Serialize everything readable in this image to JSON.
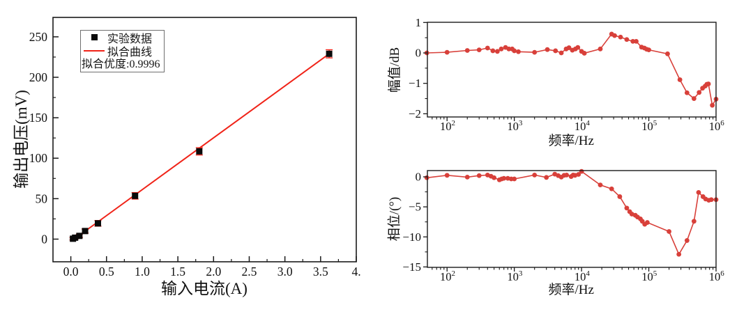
{
  "page": {
    "background": "#ffffff"
  },
  "chart_data": [
    {
      "id": "linearity-plot",
      "type": "scatter",
      "xlabel": "输入电流(A)",
      "ylabel": "输出电压(mV)",
      "xlim": [
        -0.25,
        4.0
      ],
      "ylim": [
        -28,
        274
      ],
      "x_ticks": {
        "values": [
          0,
          0.5,
          1,
          1.5,
          2,
          2.5,
          3,
          3.5,
          4
        ],
        "labels": [
          "0.0",
          "0.5",
          "1.0",
          "1.5",
          "2.0",
          "2.5",
          "3.0",
          "3.5",
          "4."
        ]
      },
      "x_minor_ticks": [
        0.25,
        0.75,
        1.25,
        1.75,
        2.25,
        2.75,
        3.25,
        3.75
      ],
      "y_ticks": {
        "values": [
          0,
          50,
          100,
          150,
          200,
          250
        ],
        "labels": [
          "0",
          "50",
          "100",
          "150",
          "200",
          "250"
        ]
      },
      "y_minor_ticks": [
        25,
        75,
        125,
        175,
        225
      ],
      "legend": {
        "data_label": "实验数据",
        "fit_label": "拟合曲线",
        "fit_quality": "拟合优度:0.9996"
      },
      "colors": {
        "marker": "#0a0a0a",
        "fit_line": "#f02318"
      },
      "points": [
        [
          0.03,
          0.5,
          1.5
        ],
        [
          0.06,
          1.8,
          1.5
        ],
        [
          0.12,
          4,
          2
        ],
        [
          0.2,
          10,
          2.5
        ],
        [
          0.38,
          19.5,
          3.5
        ],
        [
          0.9,
          53.5,
          4
        ],
        [
          1.8,
          108.5,
          4.5
        ],
        [
          3.62,
          229,
          5
        ]
      ],
      "fit_line": [
        [
          0.02,
          -1.7
        ],
        [
          3.62,
          229
        ]
      ]
    },
    {
      "id": "bode-magnitude",
      "type": "line",
      "xlabel": "频率/Hz",
      "ylabel": "幅值/dB",
      "x_scale": "log",
      "xlim": [
        51,
        1000000
      ],
      "ylim": [
        -2.105,
        1.007
      ],
      "x_tick_exponents": [
        2,
        3,
        4,
        5,
        6
      ],
      "y_ticks": {
        "values": [
          1,
          0,
          -1,
          -2
        ],
        "labels": [
          "1",
          "0",
          "−1",
          "−2"
        ]
      },
      "y_minor_ticks": [
        0.5,
        -0.5,
        -1.5
      ],
      "color": "#d8403a",
      "points": [
        [
          50,
          0.0
        ],
        [
          100,
          0.02
        ],
        [
          200,
          0.08
        ],
        [
          300,
          0.1
        ],
        [
          400,
          0.16
        ],
        [
          480,
          0.07
        ],
        [
          560,
          0.05
        ],
        [
          640,
          0.13
        ],
        [
          740,
          0.18
        ],
        [
          830,
          0.13
        ],
        [
          930,
          0.13
        ],
        [
          1000,
          0.07
        ],
        [
          1150,
          0.04
        ],
        [
          2000,
          0.02
        ],
        [
          3100,
          0.11
        ],
        [
          4100,
          0.07
        ],
        [
          5000,
          0.0
        ],
        [
          5900,
          0.13
        ],
        [
          6500,
          0.17
        ],
        [
          7300,
          0.09
        ],
        [
          8100,
          0.13
        ],
        [
          8800,
          0.18
        ],
        [
          10000,
          0.05
        ],
        [
          11000,
          -0.01
        ],
        [
          19000,
          0.13
        ],
        [
          28000,
          0.62
        ],
        [
          31000,
          0.57
        ],
        [
          38000,
          0.52
        ],
        [
          47000,
          0.44
        ],
        [
          58000,
          0.38
        ],
        [
          65000,
          0.38
        ],
        [
          78000,
          0.19
        ],
        [
          86000,
          0.16
        ],
        [
          93000,
          0.12
        ],
        [
          100000,
          0.1
        ],
        [
          190000,
          -0.03
        ],
        [
          290000,
          -0.88
        ],
        [
          370000,
          -1.31
        ],
        [
          470000,
          -1.5
        ],
        [
          560000,
          -1.3
        ],
        [
          630000,
          -1.16
        ],
        [
          690000,
          -1.09
        ],
        [
          730000,
          -1.03
        ],
        [
          770000,
          -1.02
        ],
        [
          880000,
          -1.72
        ],
        [
          1000000,
          -1.52
        ]
      ]
    },
    {
      "id": "bode-phase",
      "type": "line",
      "xlabel": "频率/Hz",
      "ylabel": "相位/(°)",
      "x_scale": "log",
      "xlim": [
        51,
        1000000
      ],
      "ylim": [
        -15.07,
        1.04
      ],
      "x_tick_exponents": [
        2,
        3,
        4,
        5,
        6
      ],
      "y_ticks": {
        "values": [
          0,
          -5,
          -10,
          -15
        ],
        "labels": [
          "0",
          "−5",
          "−10",
          "−15"
        ]
      },
      "y_minor_ticks": [
        -2.5,
        -7.5,
        -12.5
      ],
      "color": "#d8403a",
      "points": [
        [
          50,
          -0.15
        ],
        [
          100,
          0.25
        ],
        [
          200,
          -0.05
        ],
        [
          300,
          0.2
        ],
        [
          400,
          0.3
        ],
        [
          450,
          0.1
        ],
        [
          500,
          -0.15
        ],
        [
          600,
          -0.5
        ],
        [
          650,
          -0.35
        ],
        [
          700,
          -0.25
        ],
        [
          800,
          -0.25
        ],
        [
          900,
          -0.35
        ],
        [
          1000,
          -0.35
        ],
        [
          2000,
          0.3
        ],
        [
          3000,
          -0.1
        ],
        [
          4000,
          0.45
        ],
        [
          4500,
          0.2
        ],
        [
          5000,
          -0.05
        ],
        [
          5500,
          0.25
        ],
        [
          6000,
          0.3
        ],
        [
          7000,
          0.05
        ],
        [
          7500,
          0.3
        ],
        [
          8000,
          0.25
        ],
        [
          9000,
          0.4
        ],
        [
          10000,
          0.9
        ],
        [
          19000,
          -1.35
        ],
        [
          28000,
          -2.0
        ],
        [
          37000,
          -3.3
        ],
        [
          47000,
          -5.2
        ],
        [
          52000,
          -5.8
        ],
        [
          56000,
          -6.2
        ],
        [
          63000,
          -6.4
        ],
        [
          68000,
          -6.7
        ],
        [
          75000,
          -7.0
        ],
        [
          80000,
          -7.4
        ],
        [
          87000,
          -7.9
        ],
        [
          95000,
          -7.6
        ],
        [
          200000,
          -9.1
        ],
        [
          280000,
          -12.9
        ],
        [
          370000,
          -10.6
        ],
        [
          470000,
          -7.4
        ],
        [
          550000,
          -2.6
        ],
        [
          640000,
          -3.3
        ],
        [
          700000,
          -3.7
        ],
        [
          780000,
          -3.9
        ],
        [
          850000,
          -3.8
        ],
        [
          1000000,
          -3.8
        ]
      ]
    }
  ]
}
